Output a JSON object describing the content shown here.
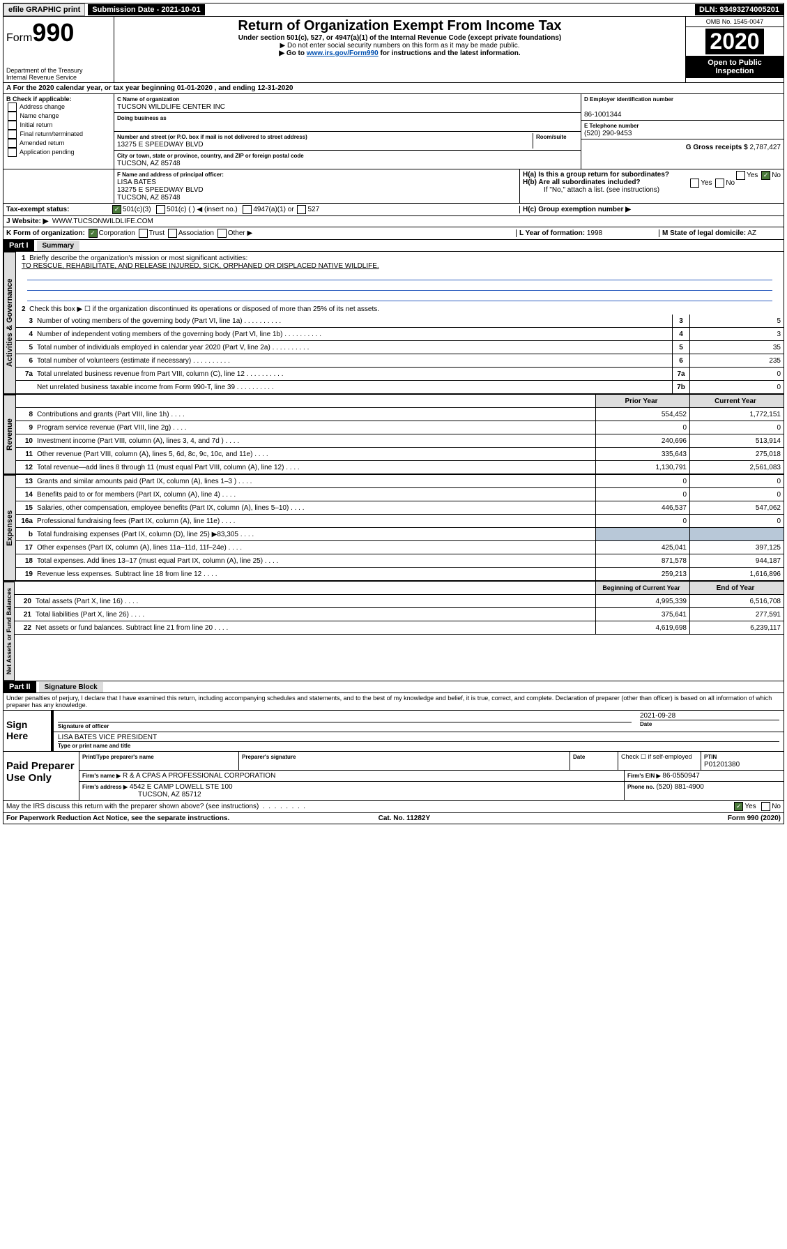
{
  "topbar": {
    "efile": "efile GRAPHIC print",
    "sub_label": "Submission Date - 2021-10-01",
    "dln": "DLN: 93493274005201"
  },
  "header": {
    "form": "Form",
    "form_num": "990",
    "dept": "Department of the Treasury\nInternal Revenue Service",
    "title": "Return of Organization Exempt From Income Tax",
    "sub1": "Under section 501(c), 527, or 4947(a)(1) of the Internal Revenue Code (except private foundations)",
    "sub2": "▶ Do not enter social security numbers on this form as it may be made public.",
    "sub3_pre": "▶ Go to ",
    "sub3_link": "www.irs.gov/Form990",
    "sub3_post": " for instructions and the latest information.",
    "omb": "OMB No. 1545-0047",
    "year": "2020",
    "open": "Open to Public Inspection"
  },
  "taxyear": "A For the 2020 calendar year, or tax year beginning 01-01-2020   , and ending 12-31-2020",
  "b": {
    "label": "B Check if applicable:",
    "opts": [
      "Address change",
      "Name change",
      "Initial return",
      "Final return/terminated",
      "Amended return",
      "Application pending"
    ]
  },
  "c": {
    "name_label": "C Name of organization",
    "name": "TUCSON WILDLIFE CENTER INC",
    "dba_label": "Doing business as",
    "street_label": "Number and street (or P.O. box if mail is not delivered to street address)",
    "room_label": "Room/suite",
    "street": "13275 E SPEEDWAY BLVD",
    "city_label": "City or town, state or province, country, and ZIP or foreign postal code",
    "city": "TUCSON, AZ  85748"
  },
  "d": {
    "label": "D Employer identification number",
    "val": "86-1001344"
  },
  "e": {
    "label": "E Telephone number",
    "val": "(520) 290-9453"
  },
  "g": {
    "label": "G Gross receipts $",
    "val": "2,787,427"
  },
  "f": {
    "label": "F  Name and address of principal officer:",
    "name": "LISA BATES",
    "addr1": "13275 E SPEEDWAY BLVD",
    "addr2": "TUCSON, AZ  85748"
  },
  "h": {
    "a": "H(a)  Is this a group return for subordinates?",
    "b": "H(b)  Are all subordinates included?",
    "note": "If \"No,\" attach a list. (see instructions)",
    "c": "H(c)  Group exemption number ▶"
  },
  "i": {
    "label": "Tax-exempt status:",
    "c3": "501(c)(3)",
    "c": "501(c) (   ) ◀ (insert no.)",
    "a1": "4947(a)(1) or",
    "s527": "527"
  },
  "j": {
    "label": "J Website: ▶",
    "val": "WWW.TUCSONWILDLIFE.COM"
  },
  "k": {
    "label": "K Form of organization:",
    "corp": "Corporation",
    "trust": "Trust",
    "assoc": "Association",
    "other": "Other ▶"
  },
  "l": {
    "label": "L Year of formation:",
    "val": "1998"
  },
  "m": {
    "label": "M State of legal domicile:",
    "val": "AZ"
  },
  "part1": {
    "hdr": "Part I",
    "title": "Summary"
  },
  "summary": {
    "l1": "Briefly describe the organization's mission or most significant activities:",
    "mission": "TO RESCUE, REHABILITATE, AND RELEASE INJURED, SICK, ORPHANED OR DISPLACED NATIVE WILDLIFE.",
    "l2": "Check this box ▶ ☐  if the organization discontinued its operations or disposed of more than 25% of its net assets.",
    "lines_gov": [
      {
        "n": "3",
        "t": "Number of voting members of the governing body (Part VI, line 1a)",
        "b": "3",
        "v": "5"
      },
      {
        "n": "4",
        "t": "Number of independent voting members of the governing body (Part VI, line 1b)",
        "b": "4",
        "v": "3"
      },
      {
        "n": "5",
        "t": "Total number of individuals employed in calendar year 2020 (Part V, line 2a)",
        "b": "5",
        "v": "35"
      },
      {
        "n": "6",
        "t": "Total number of volunteers (estimate if necessary)",
        "b": "6",
        "v": "235"
      },
      {
        "n": "7a",
        "t": "Total unrelated business revenue from Part VIII, column (C), line 12",
        "b": "7a",
        "v": "0"
      },
      {
        "n": "",
        "t": "Net unrelated business taxable income from Form 990-T, line 39",
        "b": "7b",
        "v": "0"
      }
    ],
    "col_prior": "Prior Year",
    "col_current": "Current Year",
    "rev": [
      {
        "n": "8",
        "t": "Contributions and grants (Part VIII, line 1h)",
        "p": "554,452",
        "c": "1,772,151"
      },
      {
        "n": "9",
        "t": "Program service revenue (Part VIII, line 2g)",
        "p": "0",
        "c": "0"
      },
      {
        "n": "10",
        "t": "Investment income (Part VIII, column (A), lines 3, 4, and 7d )",
        "p": "240,696",
        "c": "513,914"
      },
      {
        "n": "11",
        "t": "Other revenue (Part VIII, column (A), lines 5, 6d, 8c, 9c, 10c, and 11e)",
        "p": "335,643",
        "c": "275,018"
      },
      {
        "n": "12",
        "t": "Total revenue—add lines 8 through 11 (must equal Part VIII, column (A), line 12)",
        "p": "1,130,791",
        "c": "2,561,083"
      }
    ],
    "exp": [
      {
        "n": "13",
        "t": "Grants and similar amounts paid (Part IX, column (A), lines 1–3 )",
        "p": "0",
        "c": "0"
      },
      {
        "n": "14",
        "t": "Benefits paid to or for members (Part IX, column (A), line 4)",
        "p": "0",
        "c": "0"
      },
      {
        "n": "15",
        "t": "Salaries, other compensation, employee benefits (Part IX, column (A), lines 5–10)",
        "p": "446,537",
        "c": "547,062"
      },
      {
        "n": "16a",
        "t": "Professional fundraising fees (Part IX, column (A), line 11e)",
        "p": "0",
        "c": "0"
      },
      {
        "n": "b",
        "t": "Total fundraising expenses (Part IX, column (D), line 25) ▶83,305",
        "p": "",
        "c": "",
        "grey": true
      },
      {
        "n": "17",
        "t": "Other expenses (Part IX, column (A), lines 11a–11d, 11f–24e)",
        "p": "425,041",
        "c": "397,125"
      },
      {
        "n": "18",
        "t": "Total expenses. Add lines 13–17 (must equal Part IX, column (A), line 25)",
        "p": "871,578",
        "c": "944,187"
      },
      {
        "n": "19",
        "t": "Revenue less expenses. Subtract line 18 from line 12",
        "p": "259,213",
        "c": "1,616,896"
      }
    ],
    "col_begin": "Beginning of Current Year",
    "col_end": "End of Year",
    "net": [
      {
        "n": "20",
        "t": "Total assets (Part X, line 16)",
        "p": "4,995,339",
        "c": "6,516,708"
      },
      {
        "n": "21",
        "t": "Total liabilities (Part X, line 26)",
        "p": "375,641",
        "c": "277,591"
      },
      {
        "n": "22",
        "t": "Net assets or fund balances. Subtract line 21 from line 20",
        "p": "4,619,698",
        "c": "6,239,117"
      }
    ]
  },
  "tabs": {
    "gov": "Activities & Governance",
    "rev": "Revenue",
    "exp": "Expenses",
    "net": "Net Assets or Fund Balances"
  },
  "part2": {
    "hdr": "Part II",
    "title": "Signature Block"
  },
  "perjury": "Under penalties of perjury, I declare that I have examined this return, including accompanying schedules and statements, and to the best of my knowledge and belief, it is true, correct, and complete. Declaration of preparer (other than officer) is based on all information of which preparer has any knowledge.",
  "sign": {
    "here": "Sign Here",
    "sig_label": "Signature of officer",
    "date": "2021-09-28",
    "date_label": "Date",
    "name": "LISA BATES VICE PRESIDENT",
    "name_label": "Type or print name and title"
  },
  "paid": {
    "title": "Paid Preparer Use Only",
    "pt_label": "Print/Type preparer's name",
    "sig_label": "Preparer's signature",
    "date_label": "Date",
    "check_label": "Check ☐ if self-employed",
    "ptin_label": "PTIN",
    "ptin": "P01201380",
    "firm_label": "Firm's name   ▶",
    "firm": "R & A CPAS A PROFESSIONAL CORPORATION",
    "ein_label": "Firm's EIN ▶",
    "ein": "86-0550947",
    "addr_label": "Firm's address ▶",
    "addr": "4542 E CAMP LOWELL STE 100",
    "addr2": "TUCSON, AZ  85712",
    "phone_label": "Phone no.",
    "phone": "(520) 881-4900"
  },
  "discuss": "May the IRS discuss this return with the preparer shown above? (see instructions)",
  "footer": {
    "l": "For Paperwork Reduction Act Notice, see the separate instructions.",
    "m": "Cat. No. 11282Y",
    "r": "Form 990 (2020)"
  }
}
